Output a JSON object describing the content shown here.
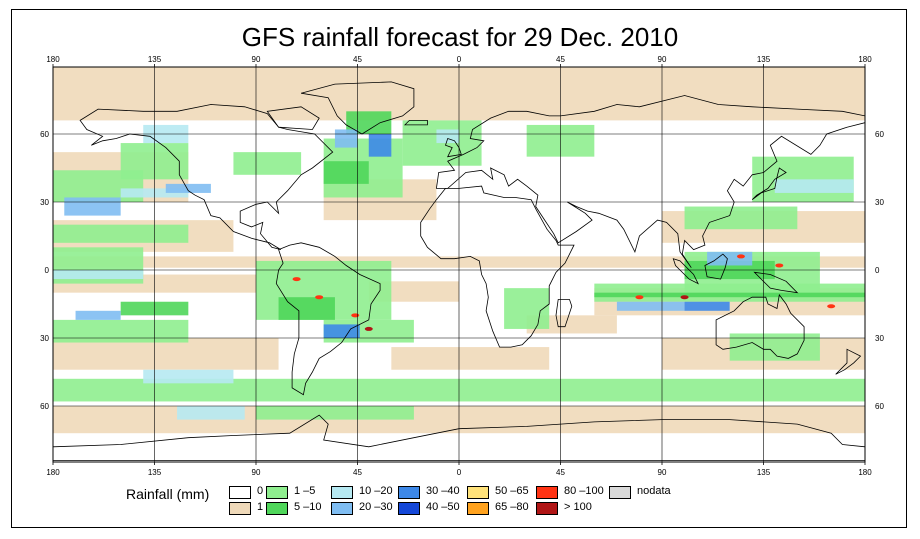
{
  "title": "GFS rainfall forecast for 29 Dec. 2010",
  "map": {
    "projection": "equirectangular",
    "lon_range": [
      -180,
      180
    ],
    "lat_range": [
      -90,
      90
    ],
    "top_lon_ticks": [
      "180",
      "135",
      "90",
      "45",
      "0",
      "45",
      "90",
      "135",
      "180"
    ],
    "bottom_lon_ticks": [
      "180",
      "135",
      "90",
      "45",
      "0",
      "45",
      "90",
      "135",
      "180"
    ],
    "left_lat_ticks": [
      "60",
      "30",
      "0",
      "30",
      "60"
    ],
    "right_lat_ticks": [
      "60",
      "30",
      "0",
      "30",
      "60"
    ],
    "tick_lons": [
      -180,
      -135,
      -90,
      -45,
      0,
      45,
      90,
      135,
      180
    ],
    "tick_lats": [
      60,
      30,
      0,
      -30,
      -60
    ]
  },
  "legend": {
    "title": "Rainfall (mm)",
    "items": [
      {
        "label": "0",
        "color": "#ffffff"
      },
      {
        "label": "1",
        "color": "#efd9b9"
      },
      {
        "label": "1 –5",
        "color": "#8fee8f"
      },
      {
        "label": "5 –10",
        "color": "#4fd65a"
      },
      {
        "label": "10 –20",
        "color": "#b6e9f2"
      },
      {
        "label": "20 –30",
        "color": "#7fbdf2"
      },
      {
        "label": "30 –40",
        "color": "#3d88e8"
      },
      {
        "label": "40 –50",
        "color": "#1447d8"
      },
      {
        "label": "50 –65",
        "color": "#ffe27a"
      },
      {
        "label": "65 –80",
        "color": "#ffa21e"
      },
      {
        "label": "80 –100",
        "color": "#ff3313"
      },
      {
        "label": "> 100",
        "color": "#b01515"
      },
      {
        "label": "nodata",
        "color": "#d9d9d9"
      }
    ]
  }
}
